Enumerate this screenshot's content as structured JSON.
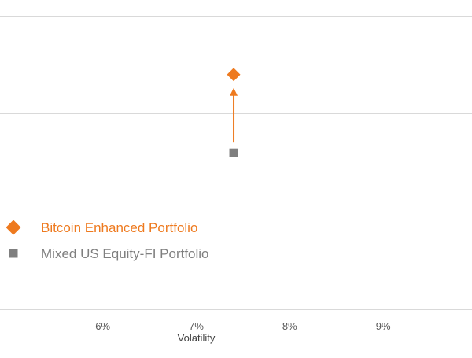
{
  "chart_data": {
    "type": "scatter",
    "xlabel": "Volatility",
    "ylabel": "",
    "x_ticks": [
      "6%",
      "7%",
      "8%",
      "9%"
    ],
    "x_tick_values": [
      6,
      7,
      8,
      9
    ],
    "xlim": [
      4.9,
      9.95
    ],
    "ylim": [
      0,
      3.05
    ],
    "gridlines_y": [
      0,
      1,
      2,
      3
    ],
    "grid": "horizontal",
    "series": [
      {
        "name": "Bitcoin Enhanced Portfolio",
        "marker": "diamond",
        "color": "#EE7A1F",
        "points": [
          {
            "x": 7.4,
            "y": 2.4
          }
        ]
      },
      {
        "name": "Mixed US Equity-FI Portfolio",
        "marker": "square",
        "color": "#7F7F7F",
        "points": [
          {
            "x": 7.4,
            "y": 1.6
          }
        ]
      }
    ],
    "annotation": {
      "type": "arrow",
      "from_series": "Mixed US Equity-FI Portfolio",
      "to_series": "Bitcoin Enhanced Portfolio",
      "color": "#EE7A1F"
    },
    "legend": {
      "placement": "lower-left",
      "entries": [
        {
          "label": "Bitcoin Enhanced Portfolio",
          "marker": "diamond",
          "color": "#EE7A1F"
        },
        {
          "label": "Mixed US Equity-FI Portfolio",
          "marker": "square",
          "color": "#7F7F7F"
        }
      ]
    }
  },
  "colors": {
    "grid": "#D9D9D9",
    "tick_text": "#595959",
    "axis_title": "#404040"
  }
}
